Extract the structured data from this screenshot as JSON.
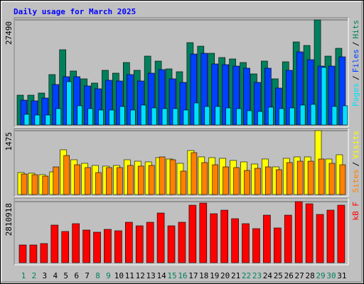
{
  "chart_data": {
    "type": "bar",
    "title": "Daily usage for March 2025",
    "categories": [
      "1",
      "2",
      "3",
      "4",
      "5",
      "6",
      "7",
      "8",
      "9",
      "10",
      "11",
      "12",
      "13",
      "14",
      "15",
      "16",
      "17",
      "18",
      "19",
      "20",
      "21",
      "22",
      "23",
      "24",
      "25",
      "26",
      "27",
      "28",
      "29",
      "30",
      "31"
    ],
    "category_colors": [
      "#00805c",
      "#00805c",
      "#000000",
      "#000000",
      "#000000",
      "#000000",
      "#000000",
      "#00805c",
      "#00805c",
      "#000000",
      "#000000",
      "#000000",
      "#000000",
      "#000000",
      "#00805c",
      "#00805c",
      "#000000",
      "#000000",
      "#000000",
      "#000000",
      "#000000",
      "#00805c",
      "#00805c",
      "#000000",
      "#000000",
      "#000000",
      "#000000",
      "#000000",
      "#00805c",
      "#00805c",
      "#000000"
    ],
    "legend_separator": "/",
    "panels": [
      {
        "ylim": [
          0,
          27490
        ],
        "yticks": [
          27490
        ],
        "series": [
          {
            "name": "Hits",
            "color": "#00805c",
            "values": [
              7801,
              7801,
              8358,
              13188,
              19689,
              14116,
              12073,
              10959,
              14302,
              13559,
              16345,
              14302,
              18017,
              16717,
              14673,
              13931,
              21546,
              20617,
              18760,
              17645,
              17274,
              16345,
              13373,
              16717,
              12073,
              16531,
              21732,
              20803,
              27490,
              18017,
              20060
            ]
          },
          {
            "name": "Files",
            "color": "#0040ff",
            "values": [
              6501,
              6315,
              7058,
              10587,
              12630,
              12630,
              10216,
              9473,
              11702,
              11516,
              13188,
              11516,
              13559,
              14488,
              12073,
              11144,
              18574,
              18760,
              15974,
              15788,
              15416,
              14859,
              11144,
              14859,
              9658,
              14302,
              19131,
              17088,
              15416,
              15416,
              17831
            ]
          },
          {
            "name": "Pages",
            "color": "#00e0ff",
            "values": [
              2786,
              2600,
              2600,
              4272,
              11330,
              5015,
              4272,
              3901,
              3901,
              4829,
              3901,
              5201,
              4458,
              4272,
              4272,
              3901,
              5758,
              4829,
              4829,
              4458,
              4272,
              3715,
              3529,
              4644,
              4272,
              4458,
              5201,
              5386,
              15045,
              4829,
              5015
            ]
          }
        ]
      },
      {
        "ylim": [
          0,
          1475
        ],
        "yticks": [
          1475
        ],
        "series": [
          {
            "name": "Visits",
            "color": "#ffff00",
            "values": [
              508,
              492,
              459,
              524,
              1033,
              803,
              721,
              672,
              656,
              672,
              803,
              770,
              754,
              852,
              820,
              721,
              1016,
              869,
              852,
              836,
              787,
              754,
              705,
              820,
              639,
              836,
              869,
              869,
              1475,
              820,
              918
            ]
          },
          {
            "name": "Sites",
            "color": "#ff8000",
            "values": [
              475,
              459,
              426,
              639,
              901,
              688,
              623,
              508,
              623,
              623,
              672,
              656,
              672,
              869,
              803,
              541,
              967,
              738,
              688,
              639,
              623,
              557,
              606,
              639,
              574,
              738,
              770,
              770,
              820,
              721,
              688
            ]
          }
        ]
      },
      {
        "ylim": [
          0,
          2810918
        ],
        "yticks": [
          2810918
        ],
        "series": [
          {
            "name": "kB F",
            "color": "#ff0000",
            "values": [
              817125,
              817125,
              882495,
              1732305,
              1438140,
              1797675,
              1503510,
              1405455,
              1536195,
              1470825,
              1863045,
              1699620,
              1863045,
              2287950,
              1699620,
              1863045,
              2647485,
              2745540,
              2255265,
              2418690,
              2026470,
              1797675,
              1568880,
              2189895,
              1601565,
              2189895,
              2810918,
              2712855,
              2222580,
              2418690,
              2647485
            ]
          }
        ]
      }
    ]
  }
}
